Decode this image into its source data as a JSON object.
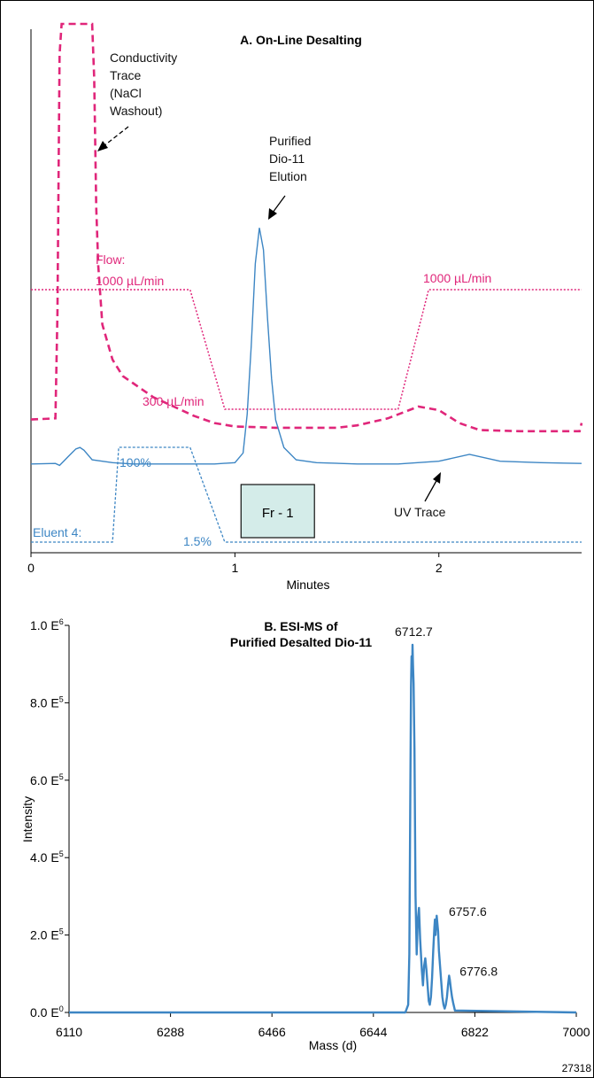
{
  "chart_data": [
    {
      "type": "line",
      "title": "A. On-Line Desalting",
      "xlabel": "Minutes",
      "xlim": [
        0,
        2.7
      ],
      "x_ticks": [
        "0",
        "1",
        "2"
      ],
      "colors": {
        "uv": "#3d86c4",
        "conductivity": "#e0267a",
        "flow": "#e0267a",
        "eluent": "#3d86c4",
        "fraction_fill": "#d4ece9"
      },
      "series": [
        {
          "name": "UV Trace",
          "role": "uv",
          "x": [
            0.0,
            0.12,
            0.14,
            0.16,
            0.18,
            0.2,
            0.22,
            0.24,
            0.26,
            0.3,
            0.35,
            0.4,
            0.5,
            0.7,
            0.9,
            1.0,
            1.04,
            1.06,
            1.08,
            1.1,
            1.12,
            1.14,
            1.16,
            1.18,
            1.2,
            1.24,
            1.3,
            1.4,
            1.6,
            1.8,
            2.0,
            2.15,
            2.3,
            2.5,
            2.7
          ],
          "y": [
            0.2,
            0.22,
            0.15,
            0.3,
            0.45,
            0.6,
            0.75,
            0.8,
            0.7,
            0.35,
            0.3,
            0.25,
            0.2,
            0.2,
            0.2,
            0.25,
            0.6,
            2.0,
            4.5,
            7.5,
            8.8,
            8.0,
            5.5,
            3.3,
            1.8,
            0.8,
            0.35,
            0.25,
            0.2,
            0.2,
            0.3,
            0.55,
            0.3,
            0.25,
            0.22
          ]
        },
        {
          "name": "Conductivity Trace",
          "role": "conductivity",
          "x": [
            0.0,
            0.12,
            0.13,
            0.14,
            0.15,
            0.3,
            0.31,
            0.32,
            0.33,
            0.35,
            0.4,
            0.45,
            0.5,
            0.6,
            0.7,
            0.8,
            0.9,
            1.0,
            1.2,
            1.5,
            1.6,
            1.75,
            1.9,
            2.0,
            2.1,
            2.2,
            2.4,
            2.6,
            2.69,
            2.7
          ],
          "y": [
            1.45,
            1.5,
            6.0,
            17.0,
            18.3,
            18.3,
            16.0,
            10.5,
            8.0,
            5.5,
            4.0,
            3.3,
            3.0,
            2.4,
            2.0,
            1.6,
            1.3,
            1.15,
            1.1,
            1.1,
            1.2,
            1.5,
            2.0,
            1.85,
            1.3,
            1.0,
            0.95,
            0.95,
            0.95,
            1.3
          ]
        },
        {
          "name": "Flow",
          "role": "flow",
          "x": [
            0.0,
            0.78,
            0.95,
            1.8,
            1.95,
            2.7
          ],
          "y": [
            1000,
            1000,
            300,
            300,
            1000,
            1000
          ]
        },
        {
          "name": "Eluent 4",
          "role": "eluent",
          "x": [
            0.0,
            0.4,
            0.43,
            0.78,
            0.95,
            2.7
          ],
          "y": [
            1.5,
            1.5,
            100,
            100,
            1.5,
            1.5
          ]
        }
      ],
      "fraction": {
        "label": "Fr - 1",
        "x": [
          1.03,
          1.39
        ]
      },
      "annotations": {
        "conductivity": [
          "Conductivity",
          "Trace",
          "(NaCl",
          "Washout)"
        ],
        "elution": [
          "Purified",
          "Dio-11",
          "Elution"
        ],
        "flow_label": "Flow:",
        "flow_high_left": "1000 µL/min",
        "flow_low": "300 µL/min",
        "flow_high_right": "1000 µL/min",
        "uv_trace": "UV Trace",
        "eluent_label": "Eluent 4:",
        "eluent_high": "100%",
        "eluent_low": "1.5%"
      }
    },
    {
      "type": "line",
      "title_lines": [
        "B. ESI-MS of",
        "Purified Desalted Dio-11"
      ],
      "xlabel": "Mass (d)",
      "ylabel": "Intensity",
      "xlim": [
        6110,
        7000
      ],
      "ylim": [
        0,
        1000000
      ],
      "x_ticks": [
        "6110",
        "6288",
        "6466",
        "6644",
        "6822",
        "7000"
      ],
      "y_ticks": [
        {
          "value": 0,
          "base": "0.0 E",
          "exp": "0"
        },
        {
          "value": 200000,
          "base": "2.0 E",
          "exp": "5"
        },
        {
          "value": 400000,
          "base": "4.0 E",
          "exp": "5"
        },
        {
          "value": 600000,
          "base": "6.0 E",
          "exp": "5"
        },
        {
          "value": 800000,
          "base": "8.0 E",
          "exp": "5"
        },
        {
          "value": 1000000,
          "base": "1.0 E",
          "exp": "6"
        }
      ],
      "color": "#3d86c4",
      "series": [
        {
          "name": "ESI-MS",
          "x": [
            6110,
            6700,
            6705,
            6707,
            6709,
            6710,
            6711,
            6712,
            6712.7,
            6713.5,
            6714.5,
            6716,
            6718,
            6720,
            6722,
            6724,
            6726,
            6729,
            6731,
            6733,
            6735,
            6737,
            6739,
            6741,
            6743,
            6745,
            6747,
            6749,
            6751,
            6752,
            6753,
            6755,
            6757.6,
            6759,
            6761,
            6763,
            6765,
            6767,
            6769,
            6771,
            6773,
            6775,
            6776.8,
            6778,
            6780,
            6782,
            6784,
            6787,
            7000
          ],
          "y": [
            0,
            0,
            20000,
            150000,
            600000,
            840000,
            920000,
            880000,
            950000,
            900000,
            850000,
            680000,
            300000,
            150000,
            240000,
            270000,
            190000,
            110000,
            70000,
            120000,
            140000,
            110000,
            70000,
            30000,
            20000,
            40000,
            90000,
            160000,
            220000,
            240000,
            200000,
            250000,
            210000,
            160000,
            120000,
            80000,
            40000,
            20000,
            10000,
            20000,
            40000,
            70000,
            95000,
            85000,
            60000,
            40000,
            25000,
            5000,
            0
          ]
        }
      ],
      "peak_labels": [
        {
          "text": "6712.7",
          "x": 6712.7,
          "y": 950000
        },
        {
          "text": "6757.6",
          "x": 6757.6,
          "y": 250000
        },
        {
          "text": "6776.8",
          "x": 6776.8,
          "y": 95000
        }
      ]
    }
  ],
  "figure_number": "27318"
}
